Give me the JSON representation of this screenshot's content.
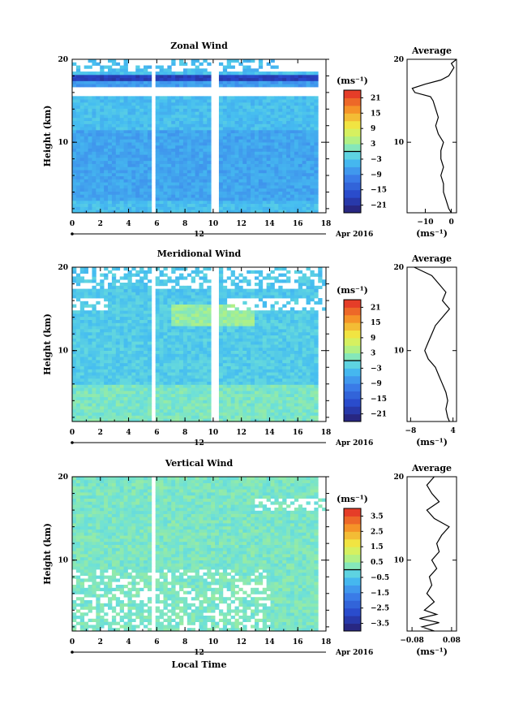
{
  "chart_data": [
    {
      "type": "heatmap",
      "title": "Zonal Wind",
      "ylabel": "Height (km)",
      "xlim": [
        0,
        18
      ],
      "ylim": [
        1.5,
        20
      ],
      "x_ticks": [
        0,
        2,
        4,
        6,
        8,
        10,
        12,
        14,
        16,
        18
      ],
      "y_ticks": [
        10,
        20
      ],
      "date_label": "12",
      "month_label": "Apr 2016",
      "colorbar": {
        "unit": "(ms⁻¹)",
        "ticks": [
          21,
          15,
          9,
          3,
          -3,
          -9,
          -15,
          -21
        ],
        "range": [
          -24,
          24
        ]
      },
      "profile": {
        "title": "Average",
        "xlabel": "(ms⁻¹)",
        "xlim": [
          -17,
          2
        ],
        "x_ticks": [
          -10,
          0
        ],
        "y_ticks": [
          10,
          20
        ],
        "height_km": [
          1.5,
          2,
          3,
          4,
          5,
          6,
          7,
          8,
          9,
          10,
          11,
          12,
          13,
          14,
          15,
          15.5,
          16,
          16.5,
          17,
          17.5,
          18,
          18.5,
          19,
          19.5,
          20
        ],
        "values": [
          0,
          -1,
          -2,
          -3,
          -3,
          -4,
          -3,
          -4,
          -4,
          -3,
          -5,
          -6,
          -5,
          -6,
          -7,
          -8,
          -14,
          -15,
          -10,
          -4,
          -1,
          0,
          1,
          0,
          2
        ]
      }
    },
    {
      "type": "heatmap",
      "title": "Meridional Wind",
      "ylabel": "Height (km)",
      "xlim": [
        0,
        18
      ],
      "ylim": [
        1.5,
        20
      ],
      "x_ticks": [
        0,
        2,
        4,
        6,
        8,
        10,
        12,
        14,
        16,
        18
      ],
      "y_ticks": [
        10,
        20
      ],
      "date_label": "12",
      "month_label": "Apr 2016",
      "colorbar": {
        "unit": "(ms⁻¹)",
        "ticks": [
          21,
          15,
          9,
          3,
          -3,
          -9,
          -15,
          -21
        ],
        "range": [
          -24,
          24
        ]
      },
      "profile": {
        "title": "Average",
        "xlabel": "(ms⁻¹)",
        "xlim": [
          -9,
          5
        ],
        "x_ticks": [
          -8,
          4
        ],
        "y_ticks": [
          10,
          20
        ],
        "height_km": [
          1.5,
          2,
          3,
          4,
          5,
          6,
          7,
          8,
          9,
          10,
          11,
          12,
          13,
          14,
          15,
          16,
          17,
          18,
          19,
          20
        ],
        "values": [
          3,
          2.5,
          2,
          2.5,
          2,
          1,
          0,
          -1,
          -3,
          -4,
          -3,
          -2,
          -1,
          1,
          3,
          1,
          2,
          0,
          -2,
          -7
        ]
      }
    },
    {
      "type": "heatmap",
      "title": "Vertical Wind",
      "ylabel": "Height (km)",
      "xlabel": "Local Time",
      "xlim": [
        0,
        18
      ],
      "ylim": [
        1.5,
        20
      ],
      "x_ticks": [
        0,
        2,
        4,
        6,
        8,
        10,
        12,
        14,
        16,
        18
      ],
      "y_ticks": [
        10,
        20
      ],
      "date_label": "12",
      "month_label": "Apr 2016",
      "colorbar": {
        "unit": "(ms⁻¹)",
        "ticks": [
          3.5,
          2.5,
          1.5,
          0.5,
          -0.5,
          -1.5,
          -2.5,
          -3.5
        ],
        "range": [
          -4,
          4
        ]
      },
      "profile": {
        "title": "Average",
        "xlabel": "(ms⁻¹)",
        "xlim": [
          -0.1,
          0.1
        ],
        "x_ticks": [
          -0.08,
          0.08
        ],
        "x_tick_labels": [
          "−0.08",
          "0.08"
        ],
        "height_km": [
          1.5,
          2,
          2.5,
          3,
          3.5,
          4,
          5,
          6,
          7,
          8,
          9,
          10,
          11,
          12,
          13,
          14,
          15,
          16,
          17,
          18,
          19,
          20
        ],
        "values": [
          0.01,
          -0.04,
          0.03,
          -0.05,
          0.02,
          -0.03,
          0.01,
          -0.02,
          0.0,
          -0.01,
          0.02,
          0.0,
          0.03,
          0.02,
          0.04,
          0.07,
          0.01,
          -0.02,
          0.03,
          0.0,
          -0.02,
          0.01
        ]
      }
    }
  ]
}
